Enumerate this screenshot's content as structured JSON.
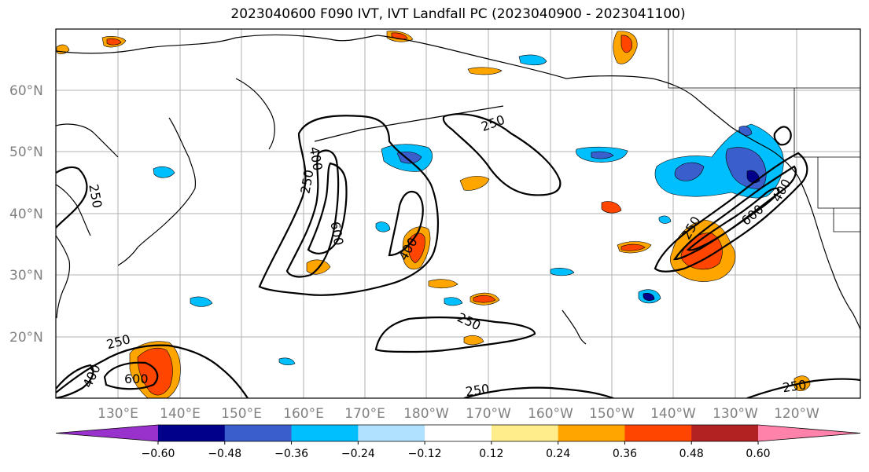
{
  "title": "2023040600 F090 IVT, IVT Landfall PC (2023040900 - 2023041100)",
  "lat_labels": [
    "60°N",
    "50°N",
    "40°N",
    "30°N",
    "20°N"
  ],
  "lon_labels": [
    "130°E",
    "140°E",
    "150°E",
    "160°E",
    "170°E",
    "180°W",
    "170°W",
    "160°W",
    "150°W",
    "140°W",
    "130°W",
    "120°W"
  ],
  "contour_labels": [
    "250",
    "250",
    "250",
    "400",
    "600",
    "400",
    "250",
    "250",
    "250",
    "400",
    "600",
    "250",
    "600",
    "400",
    "250"
  ],
  "colorbar": {
    "colors": [
      "#9932CC",
      "#00008B",
      "#3A5FCD",
      "#00BFFF",
      "#B0E2FF",
      "#FFFFFF",
      "#FFEC8B",
      "#FFA500",
      "#FF4500",
      "#B22222",
      "#FF82AB"
    ],
    "tick_labels": [
      "−0.60",
      "−0.48",
      "−0.36",
      "−0.24",
      "−0.12",
      "0.12",
      "0.24",
      "0.36",
      "0.48",
      "0.60"
    ]
  }
}
